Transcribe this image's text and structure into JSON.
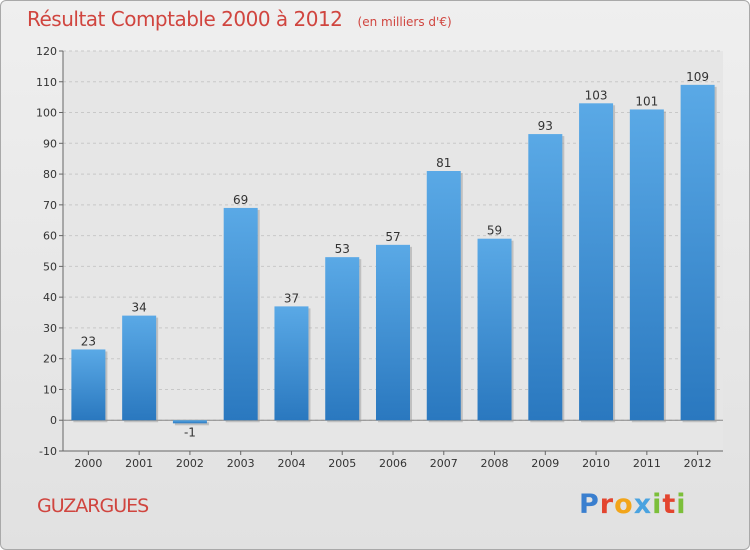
{
  "header": {
    "title": "Résultat Comptable 2000 à 2012",
    "subtitle": "(en milliers d'€)"
  },
  "footer": {
    "town": "GUZARGUES",
    "logo": "Proxiti",
    "logo_letters": [
      {
        "char": "P",
        "color": "#3a7fcf"
      },
      {
        "char": "r",
        "color": "#e3452f"
      },
      {
        "char": "o",
        "color": "#f2a51a"
      },
      {
        "char": "x",
        "color": "#4aa3e0"
      },
      {
        "char": "i",
        "color": "#7cbf3a"
      },
      {
        "char": "t",
        "color": "#e3452f"
      },
      {
        "char": "i",
        "color": "#7cbf3a"
      }
    ]
  },
  "chart_data": {
    "type": "bar",
    "categories": [
      "2000",
      "2001",
      "2002",
      "2003",
      "2004",
      "2005",
      "2006",
      "2007",
      "2008",
      "2009",
      "2010",
      "2011",
      "2012"
    ],
    "values": [
      23,
      34,
      -1,
      69,
      37,
      53,
      57,
      81,
      59,
      93,
      103,
      101,
      109
    ],
    "data_labels": [
      "23",
      "34",
      "-1",
      "69",
      "37",
      "53",
      "57",
      "81",
      "59",
      "93",
      "103",
      "101",
      "109"
    ],
    "yticks": [
      -10,
      0,
      10,
      20,
      30,
      40,
      50,
      60,
      70,
      80,
      90,
      100,
      110,
      120
    ],
    "ylim": [
      -10,
      120
    ],
    "grid": true,
    "bar_color": "#3d8fd6",
    "grid_color": "#c8c8c8"
  }
}
